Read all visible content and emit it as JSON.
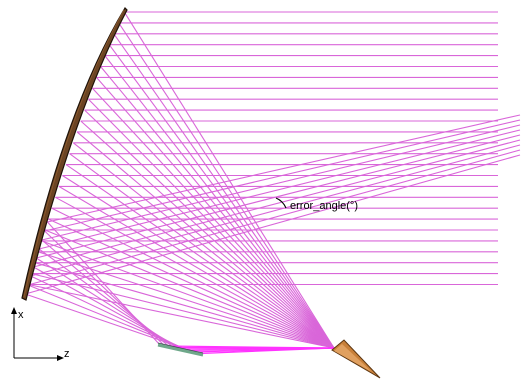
{
  "annotation": {
    "label": "error_angle(°)"
  },
  "axes": {
    "vertical_label": "x",
    "horizontal_label": "z"
  },
  "colors": {
    "ray": "#d966d9",
    "ray_focus": "#ff33ff",
    "mirror_fill": "#6b4423",
    "mirror_edge": "#1e1208",
    "detector": "#6fa88a",
    "feed_horn": "#c8803a"
  }
}
